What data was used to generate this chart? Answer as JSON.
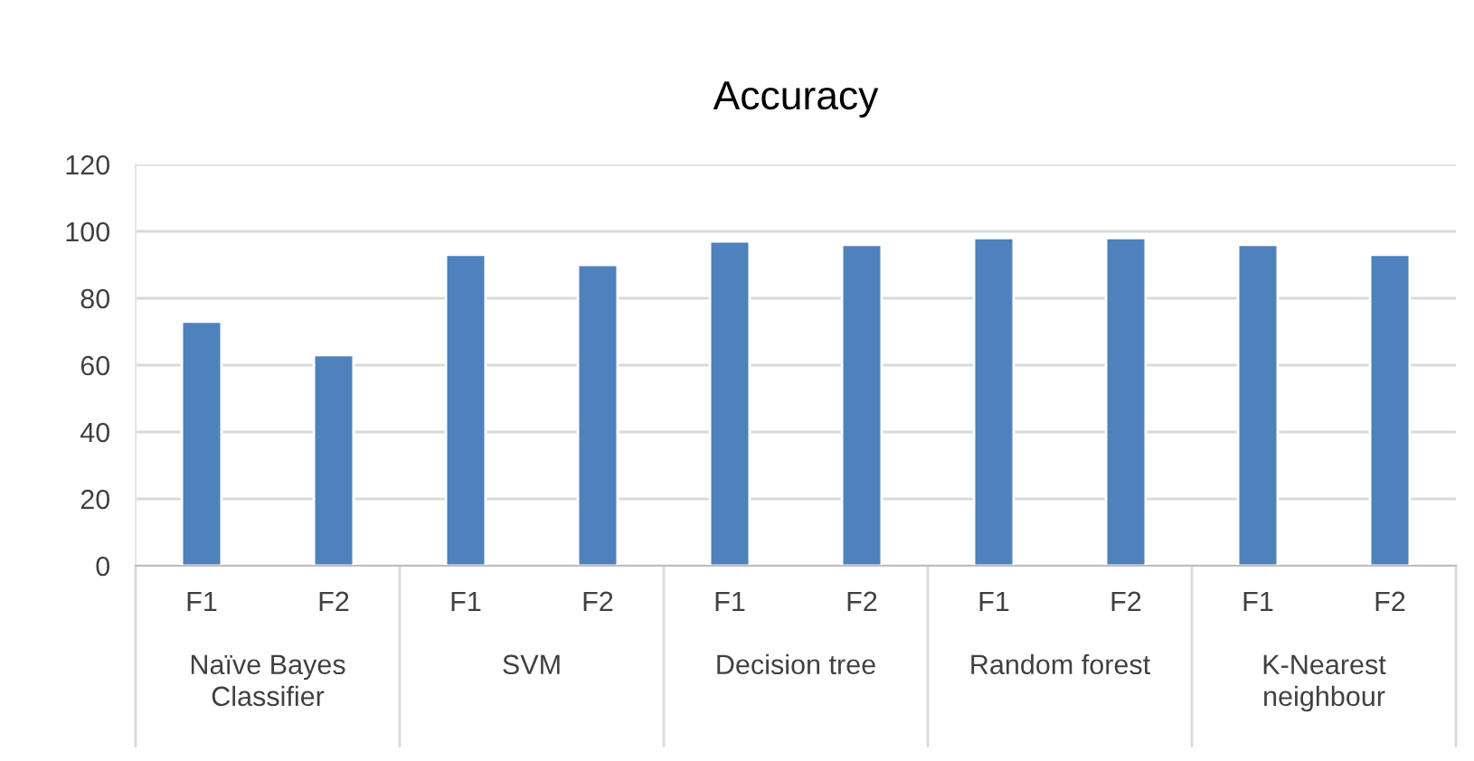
{
  "chart_data": {
    "type": "bar",
    "title": "Accuracy",
    "categories": [
      "F1",
      "F2",
      "F1",
      "F2",
      "F1",
      "F2",
      "F1",
      "F2",
      "F1",
      "F2"
    ],
    "values": [
      73,
      63,
      93,
      90,
      97,
      96,
      98,
      98,
      96,
      93
    ],
    "color": "#4f81bd",
    "annotations": [
      "Naïve Bayes\nClassifier",
      "SVM",
      "Decision tree",
      "Random forest",
      "K-Nearest\nneighbour"
    ],
    "ylim": [
      0,
      120
    ],
    "yticks": [
      0,
      20,
      40,
      60,
      80,
      100,
      120
    ],
    "grid": "y"
  }
}
